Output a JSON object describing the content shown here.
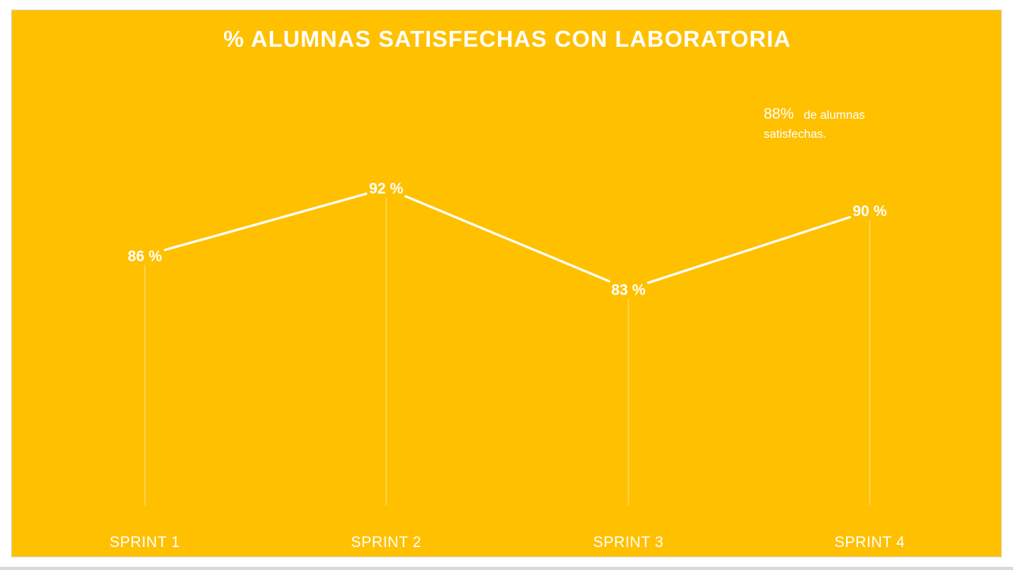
{
  "chart_data": {
    "type": "line",
    "title": "% ALUMNAS SATISFECHAS CON LABORATORIA",
    "categories": [
      "SPRINT 1",
      "SPRINT 2",
      "SPRINT 3",
      "SPRINT 4"
    ],
    "values": [
      86,
      92,
      83,
      90
    ],
    "data_labels": [
      "86 %",
      "92 %",
      "83 %",
      "90 %"
    ],
    "ylim": [
      74,
      96
    ],
    "grid": false,
    "legend": "none",
    "drop_lines": true,
    "annotation": {
      "value": "88%",
      "text_line1": "de alumnas",
      "text_line2": "satisfechas."
    }
  },
  "colors": {
    "background": "#FFC000",
    "line": "#FFFFFF",
    "text": "#FFFFFF"
  }
}
